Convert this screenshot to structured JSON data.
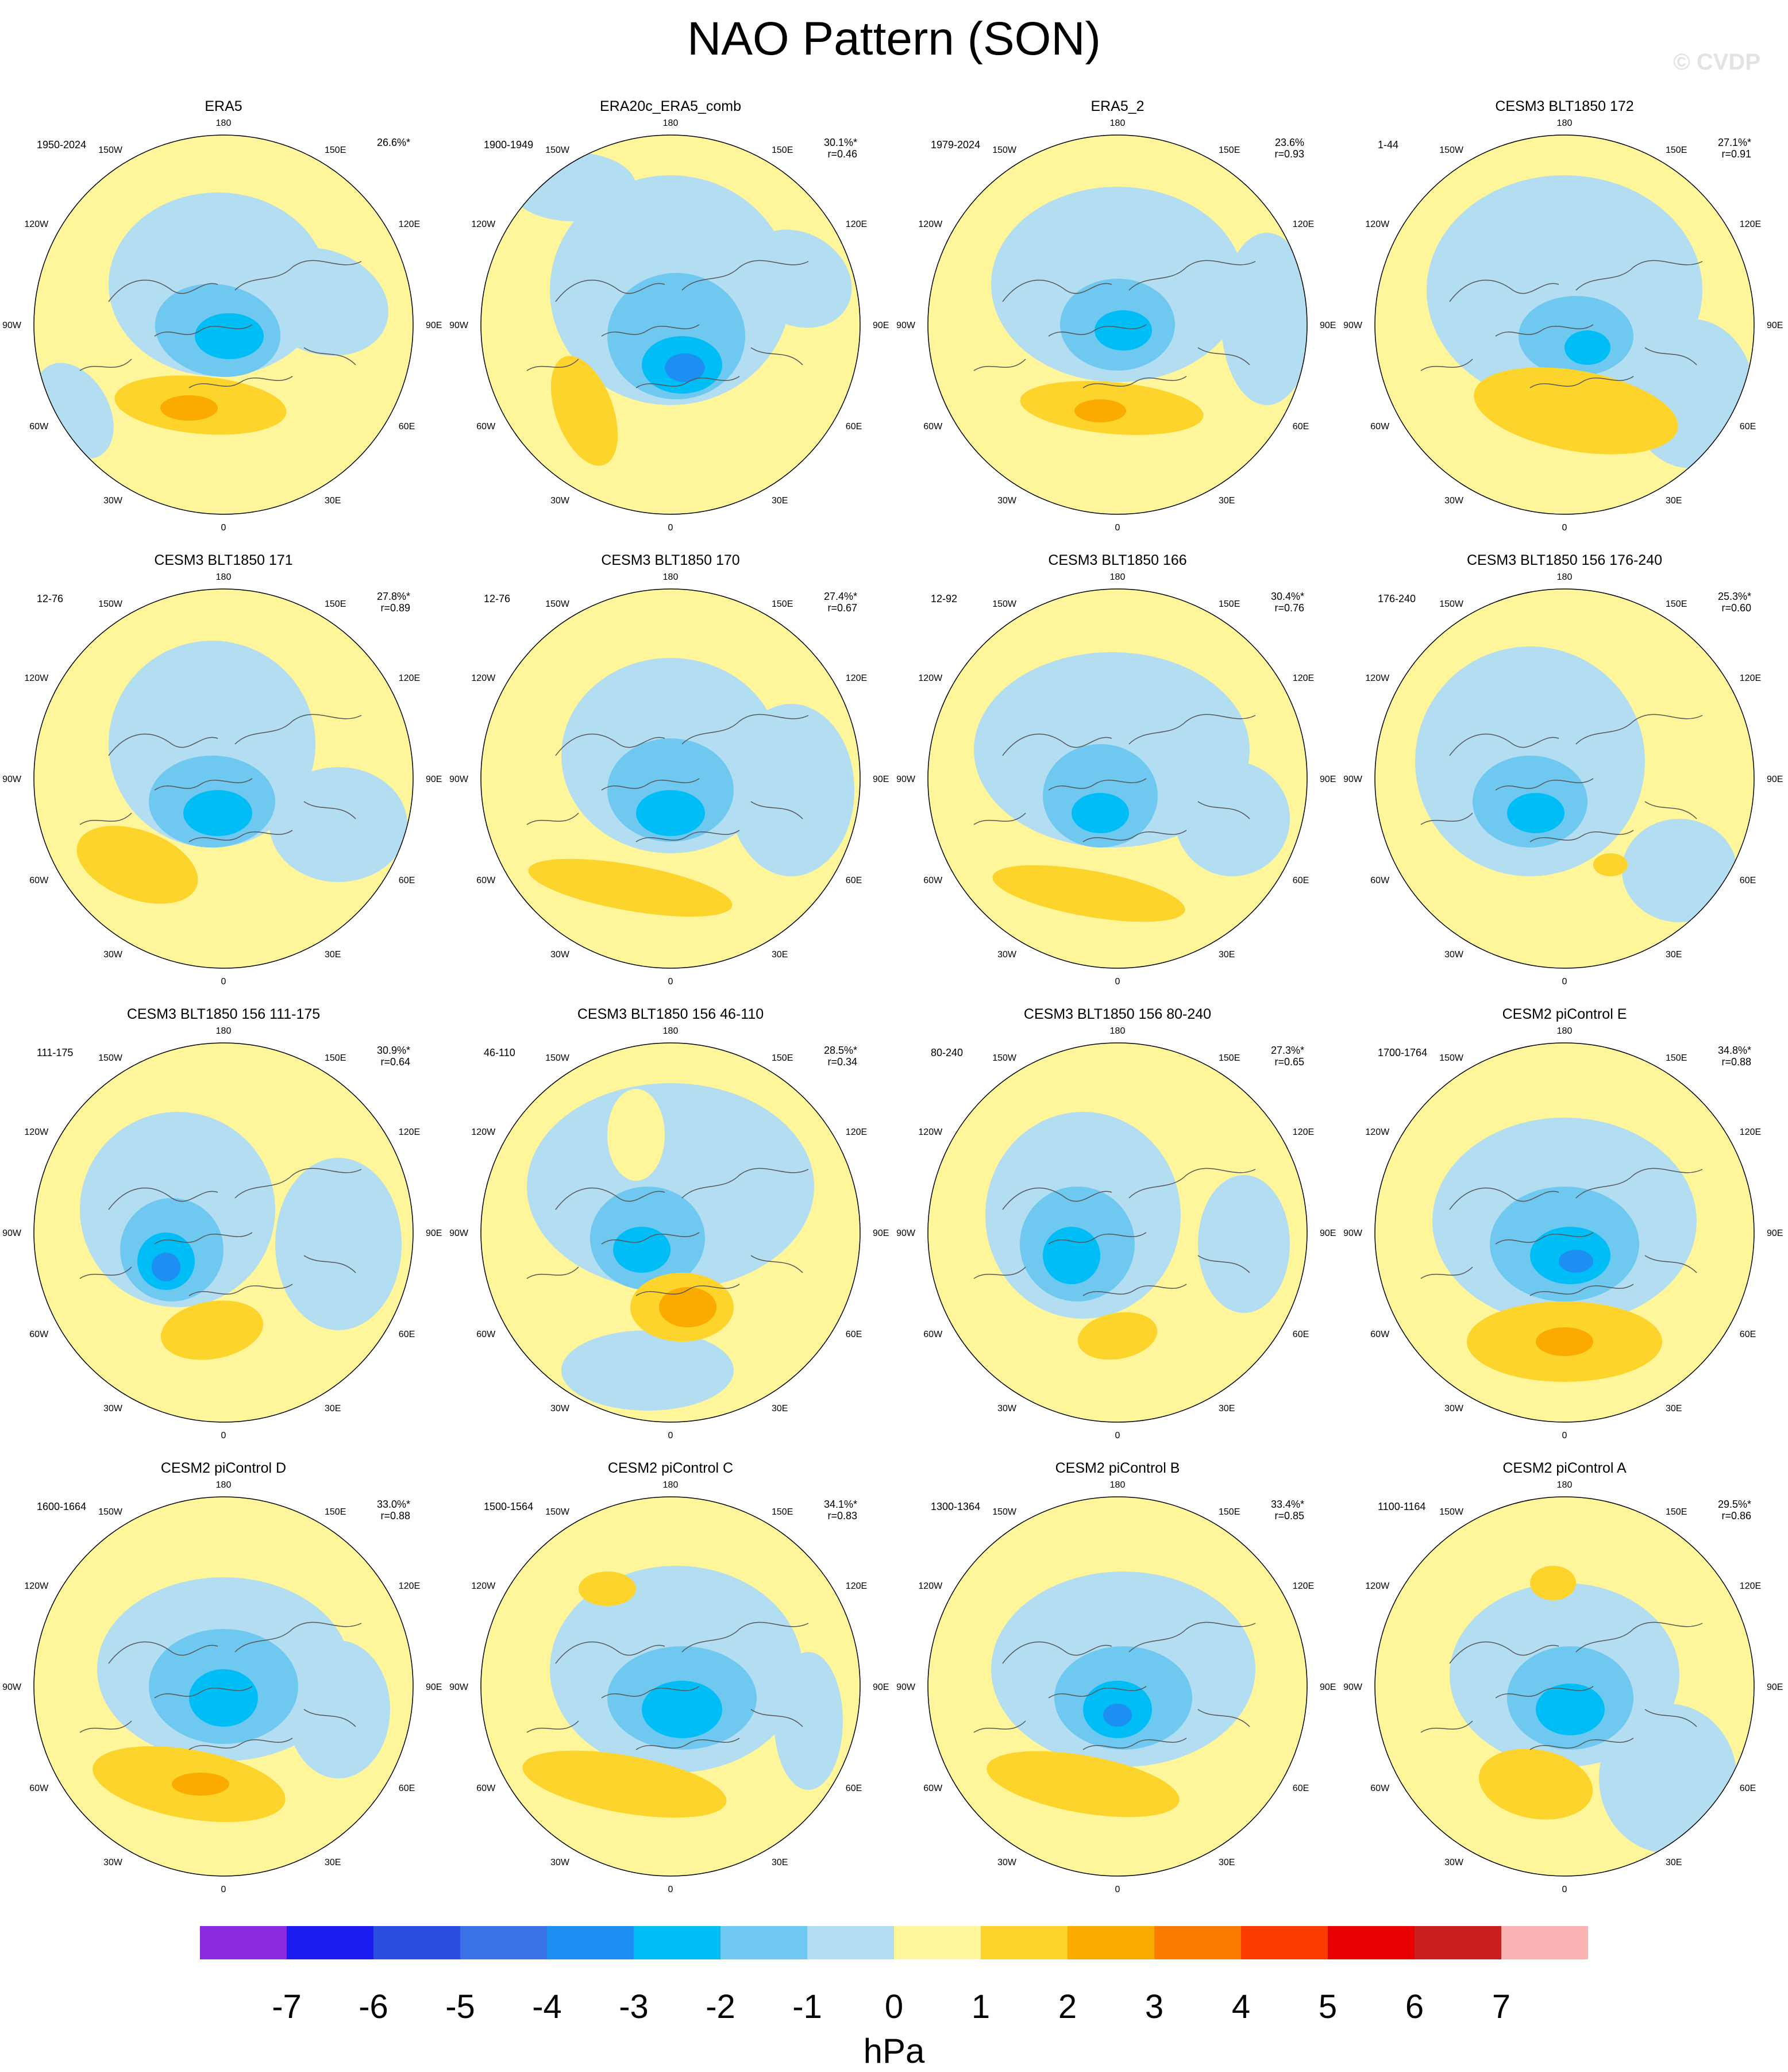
{
  "title": "NAO Pattern (SON)",
  "watermark": "© CVDP",
  "longitude_labels": [
    "180",
    "150E",
    "120E",
    "90E",
    "60E",
    "30E",
    "0",
    "30W",
    "60W",
    "90W",
    "120W",
    "150W"
  ],
  "panels": [
    {
      "title": "ERA5",
      "years": "1950-2024",
      "pct": "26.6%*",
      "r": ""
    },
    {
      "title": "ERA20c_ERA5_comb",
      "years": "1900-1949",
      "pct": "30.1%*",
      "r": "r=0.46"
    },
    {
      "title": "ERA5_2",
      "years": "1979-2024",
      "pct": "23.6%",
      "r": "r=0.93"
    },
    {
      "title": "CESM3 BLT1850 172",
      "years": "1-44",
      "pct": "27.1%*",
      "r": "r=0.91"
    },
    {
      "title": "CESM3 BLT1850 171",
      "years": "12-76",
      "pct": "27.8%*",
      "r": "r=0.89"
    },
    {
      "title": "CESM3 BLT1850 170",
      "years": "12-76",
      "pct": "27.4%*",
      "r": "r=0.67"
    },
    {
      "title": "CESM3 BLT1850 166",
      "years": "12-92",
      "pct": "30.4%*",
      "r": "r=0.76"
    },
    {
      "title": "CESM3 BLT1850 156 176-240",
      "years": "176-240",
      "pct": "25.3%*",
      "r": "r=0.60"
    },
    {
      "title": "CESM3 BLT1850 156 111-175",
      "years": "111-175",
      "pct": "30.9%*",
      "r": "r=0.64"
    },
    {
      "title": "CESM3 BLT1850 156 46-110",
      "years": "46-110",
      "pct": "28.5%*",
      "r": "r=0.34"
    },
    {
      "title": "CESM3 BLT1850 156 80-240",
      "years": "80-240",
      "pct": "27.3%*",
      "r": "r=0.65"
    },
    {
      "title": "CESM2 piControl E",
      "years": "1700-1764",
      "pct": "34.8%*",
      "r": "r=0.88"
    },
    {
      "title": "CESM2 piControl D",
      "years": "1600-1664",
      "pct": "33.0%*",
      "r": "r=0.88"
    },
    {
      "title": "CESM2 piControl C",
      "years": "1500-1564",
      "pct": "34.1%*",
      "r": "r=0.83"
    },
    {
      "title": "CESM2 piControl B",
      "years": "1300-1364",
      "pct": "33.4%*",
      "r": "r=0.85"
    },
    {
      "title": "CESM2 piControl A",
      "years": "1100-1164",
      "pct": "29.5%*",
      "r": "r=0.86"
    }
  ],
  "colorbar": {
    "unit": "hPa",
    "labels": [
      "-7",
      "-6",
      "-5",
      "-4",
      "-3",
      "-2",
      "-1",
      "0",
      "1",
      "2",
      "3",
      "4",
      "5",
      "6",
      "7"
    ],
    "colors": [
      "#8a2be2",
      "#1c1cf0",
      "#2b4de0",
      "#3a73e6",
      "#1d8ff2",
      "#00bdf5",
      "#6ec8f0",
      "#b3def2",
      "#fff59a",
      "#fcd42c",
      "#fbaa00",
      "#fb7c00",
      "#fb3a00",
      "#e80000",
      "#c81e1e",
      "#fbb4b4"
    ]
  },
  "colors": {
    "negative_1": "#b3def2",
    "negative_2": "#6ec8f0",
    "negative_3": "#00bdf5",
    "negative_4": "#1d8ff2",
    "negative_5": "#3a73e6",
    "positive_1": "#fff59a",
    "positive_2": "#fcd42c",
    "positive_3": "#fbaa00",
    "positive_4": "#fb7c00",
    "coastline": "#555555"
  }
}
